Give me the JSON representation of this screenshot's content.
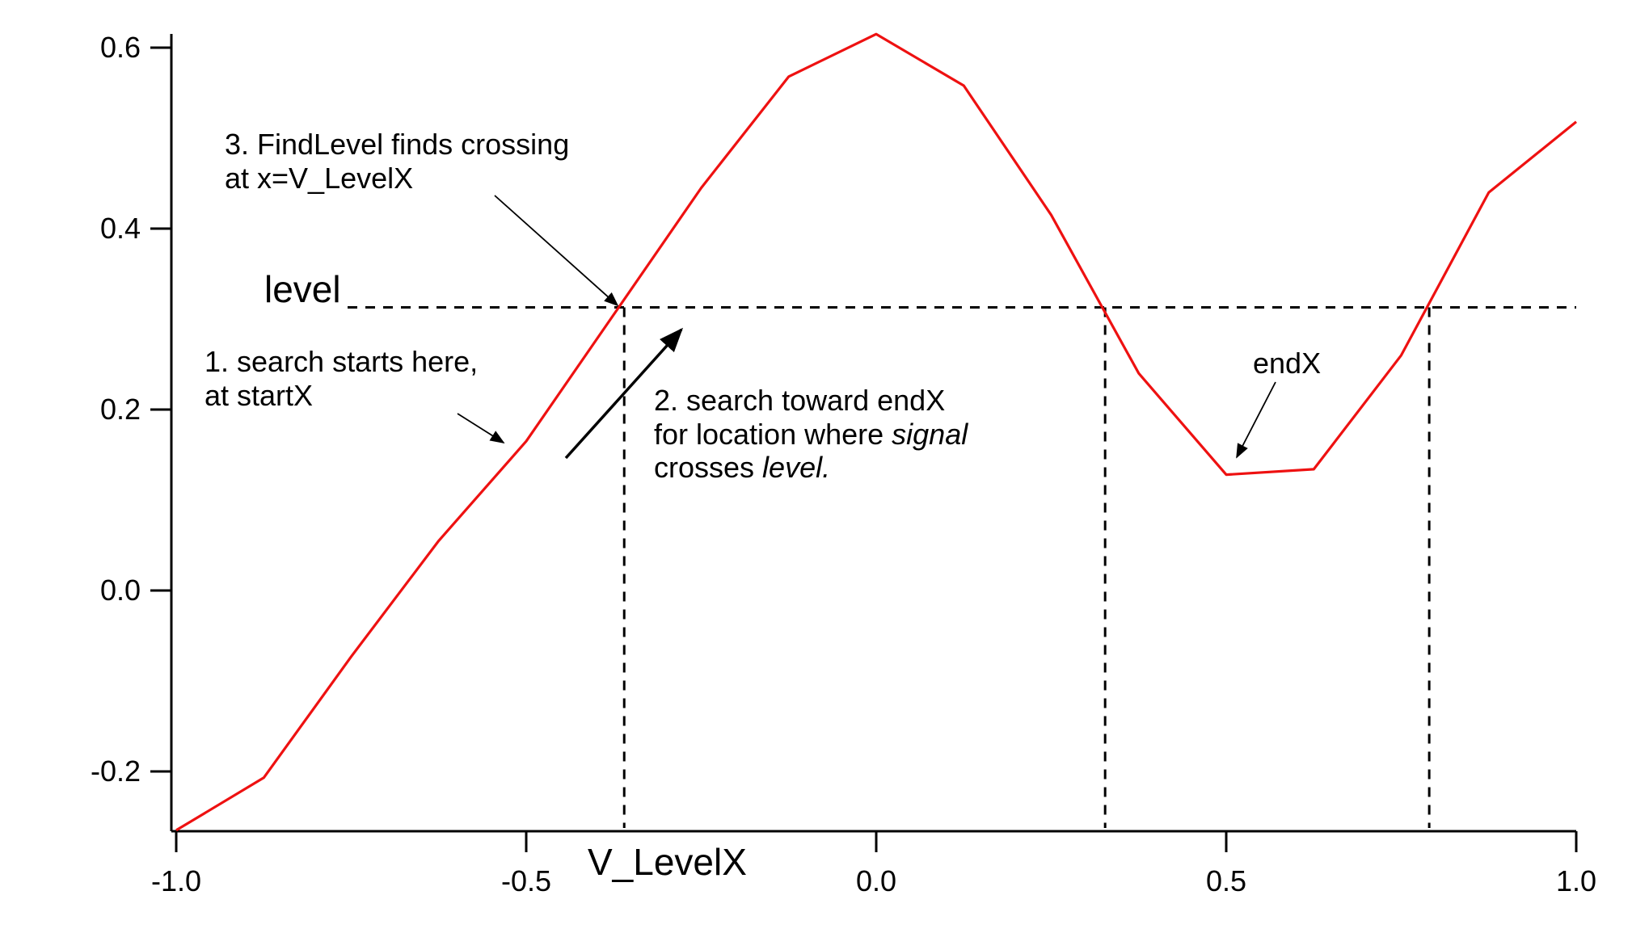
{
  "chart_data": {
    "type": "line",
    "title": "",
    "xlabel": "",
    "ylabel": "",
    "xlim": [
      -1.0,
      1.0
    ],
    "ylim": [
      -0.27,
      0.6
    ],
    "grid": false,
    "line_color": "#ee1111",
    "x_ticks": [
      {
        "value": -1.0,
        "label": "-1.0"
      },
      {
        "value": -0.5,
        "label": "-0.5"
      },
      {
        "value": 0.0,
        "label": "0.0"
      },
      {
        "value": 0.5,
        "label": "0.5"
      },
      {
        "value": 1.0,
        "label": "1.0"
      }
    ],
    "y_ticks": [
      {
        "value": 0.6,
        "label": "0.6"
      },
      {
        "value": 0.4,
        "label": "0.4"
      },
      {
        "value": 0.2,
        "label": "0.2"
      },
      {
        "value": 0.0,
        "label": "0.0"
      },
      {
        "value": -0.2,
        "label": "-0.2"
      }
    ],
    "series": [
      {
        "x": [
          -1.0,
          -0.875,
          -0.75,
          -0.625,
          -0.5,
          -0.375,
          -0.25,
          -0.125,
          0.0,
          0.125,
          0.25,
          0.375,
          0.5,
          0.625,
          0.75,
          0.875,
          1.0
        ],
        "y": [
          -0.265,
          -0.207,
          -0.073,
          0.055,
          0.165,
          0.305,
          0.445,
          0.568,
          0.615,
          0.558,
          0.415,
          0.24,
          0.128,
          0.134,
          0.26,
          0.44,
          0.518
        ]
      }
    ],
    "level": {
      "value": 0.313,
      "label": "level"
    },
    "crossings": [
      -0.36,
      0.327,
      0.79
    ],
    "v_levelx_label": "V_LevelX",
    "annotations": {
      "step1": [
        "1. search starts here,",
        "at startX"
      ],
      "step2": {
        "line1": "2. search toward endX",
        "line2_prefix": "for location where ",
        "line2_italic": "signal",
        "line3_prefix": "crosses ",
        "line3_italic": "level."
      },
      "step3": [
        "3. FindLevel finds crossing",
        "at x=V_LevelX"
      ],
      "endx": "endX"
    }
  }
}
